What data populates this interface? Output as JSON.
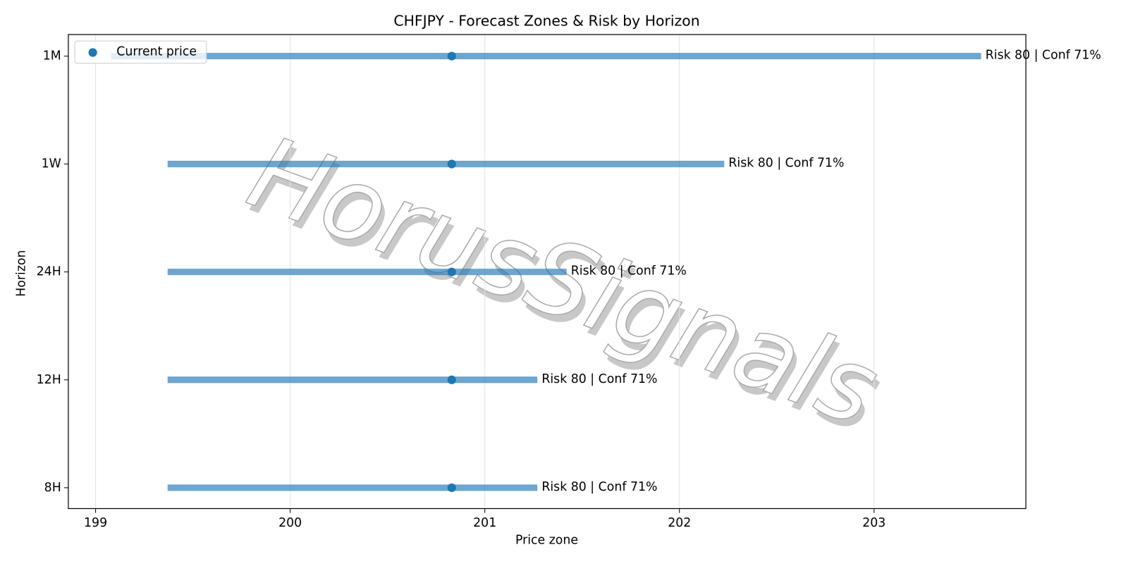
{
  "chart_data": {
    "type": "range",
    "title": "CHFJPY - Forecast Zones & Risk by Horizon",
    "x_label": "Price zone",
    "y_label": "Horizon",
    "categories": [
      "8H",
      "12H",
      "24H",
      "1W",
      "1M"
    ],
    "low": [
      199.37,
      199.37,
      199.37,
      199.37,
      199.08
    ],
    "high": [
      201.27,
      201.27,
      201.42,
      202.23,
      203.55
    ],
    "bar_color": "#1f77b4",
    "current": {
      "name": "Current price",
      "color": "#1f77b4",
      "values": [
        200.83,
        200.83,
        200.83,
        200.83,
        200.83
      ]
    },
    "annotations": [
      "Risk 80 | Conf 71%",
      "Risk 80 | Conf 71%",
      "Risk 80 | Conf 71%",
      "Risk 80 | Conf 71%",
      "Risk 80 | Conf 71%"
    ],
    "xlim": [
      198.86,
      203.78
    ],
    "xticks": [
      199,
      200,
      201,
      202,
      203
    ],
    "grid": true,
    "legend": "upper left",
    "watermark": "HorusSignals"
  }
}
